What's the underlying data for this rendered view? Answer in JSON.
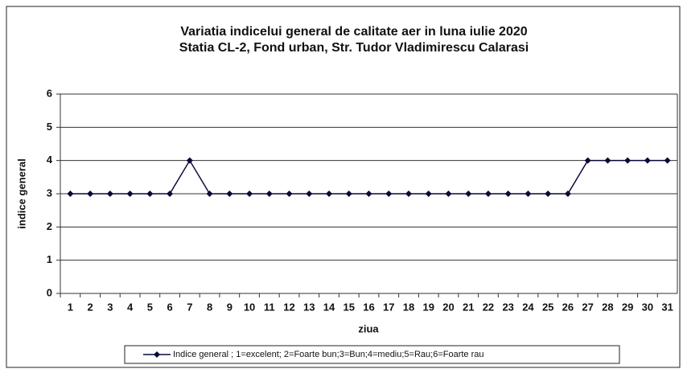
{
  "chart_data": {
    "type": "line",
    "title": "Variatia indicelui general de calitate aer in luna iulie 2020",
    "subtitle": "Statia CL-2, Fond urban,  Str. Tudor Vladimirescu Calarasi",
    "x_label": "ziua",
    "y_label": "indice general",
    "categories": [
      "1",
      "2",
      "3",
      "4",
      "5",
      "6",
      "7",
      "8",
      "9",
      "10",
      "11",
      "12",
      "13",
      "14",
      "15",
      "16",
      "17",
      "18",
      "19",
      "20",
      "21",
      "22",
      "23",
      "24",
      "25",
      "26",
      "27",
      "28",
      "29",
      "30",
      "31"
    ],
    "series": [
      {
        "name": "Indice  general ; 1=excelent; 2=Foarte bun;3=Bun;4=mediu;5=Rau;6=Foarte rau",
        "color": "#0a0a3a",
        "values": [
          3,
          3,
          3,
          3,
          3,
          3,
          4,
          3,
          3,
          3,
          3,
          3,
          3,
          3,
          3,
          3,
          3,
          3,
          3,
          3,
          3,
          3,
          3,
          3,
          3,
          3,
          4,
          4,
          4,
          4,
          4
        ]
      }
    ],
    "ylim": [
      0,
      6
    ],
    "yticks": [
      0,
      1,
      2,
      3,
      4,
      5,
      6
    ],
    "grid": true,
    "legend": "bottom"
  }
}
